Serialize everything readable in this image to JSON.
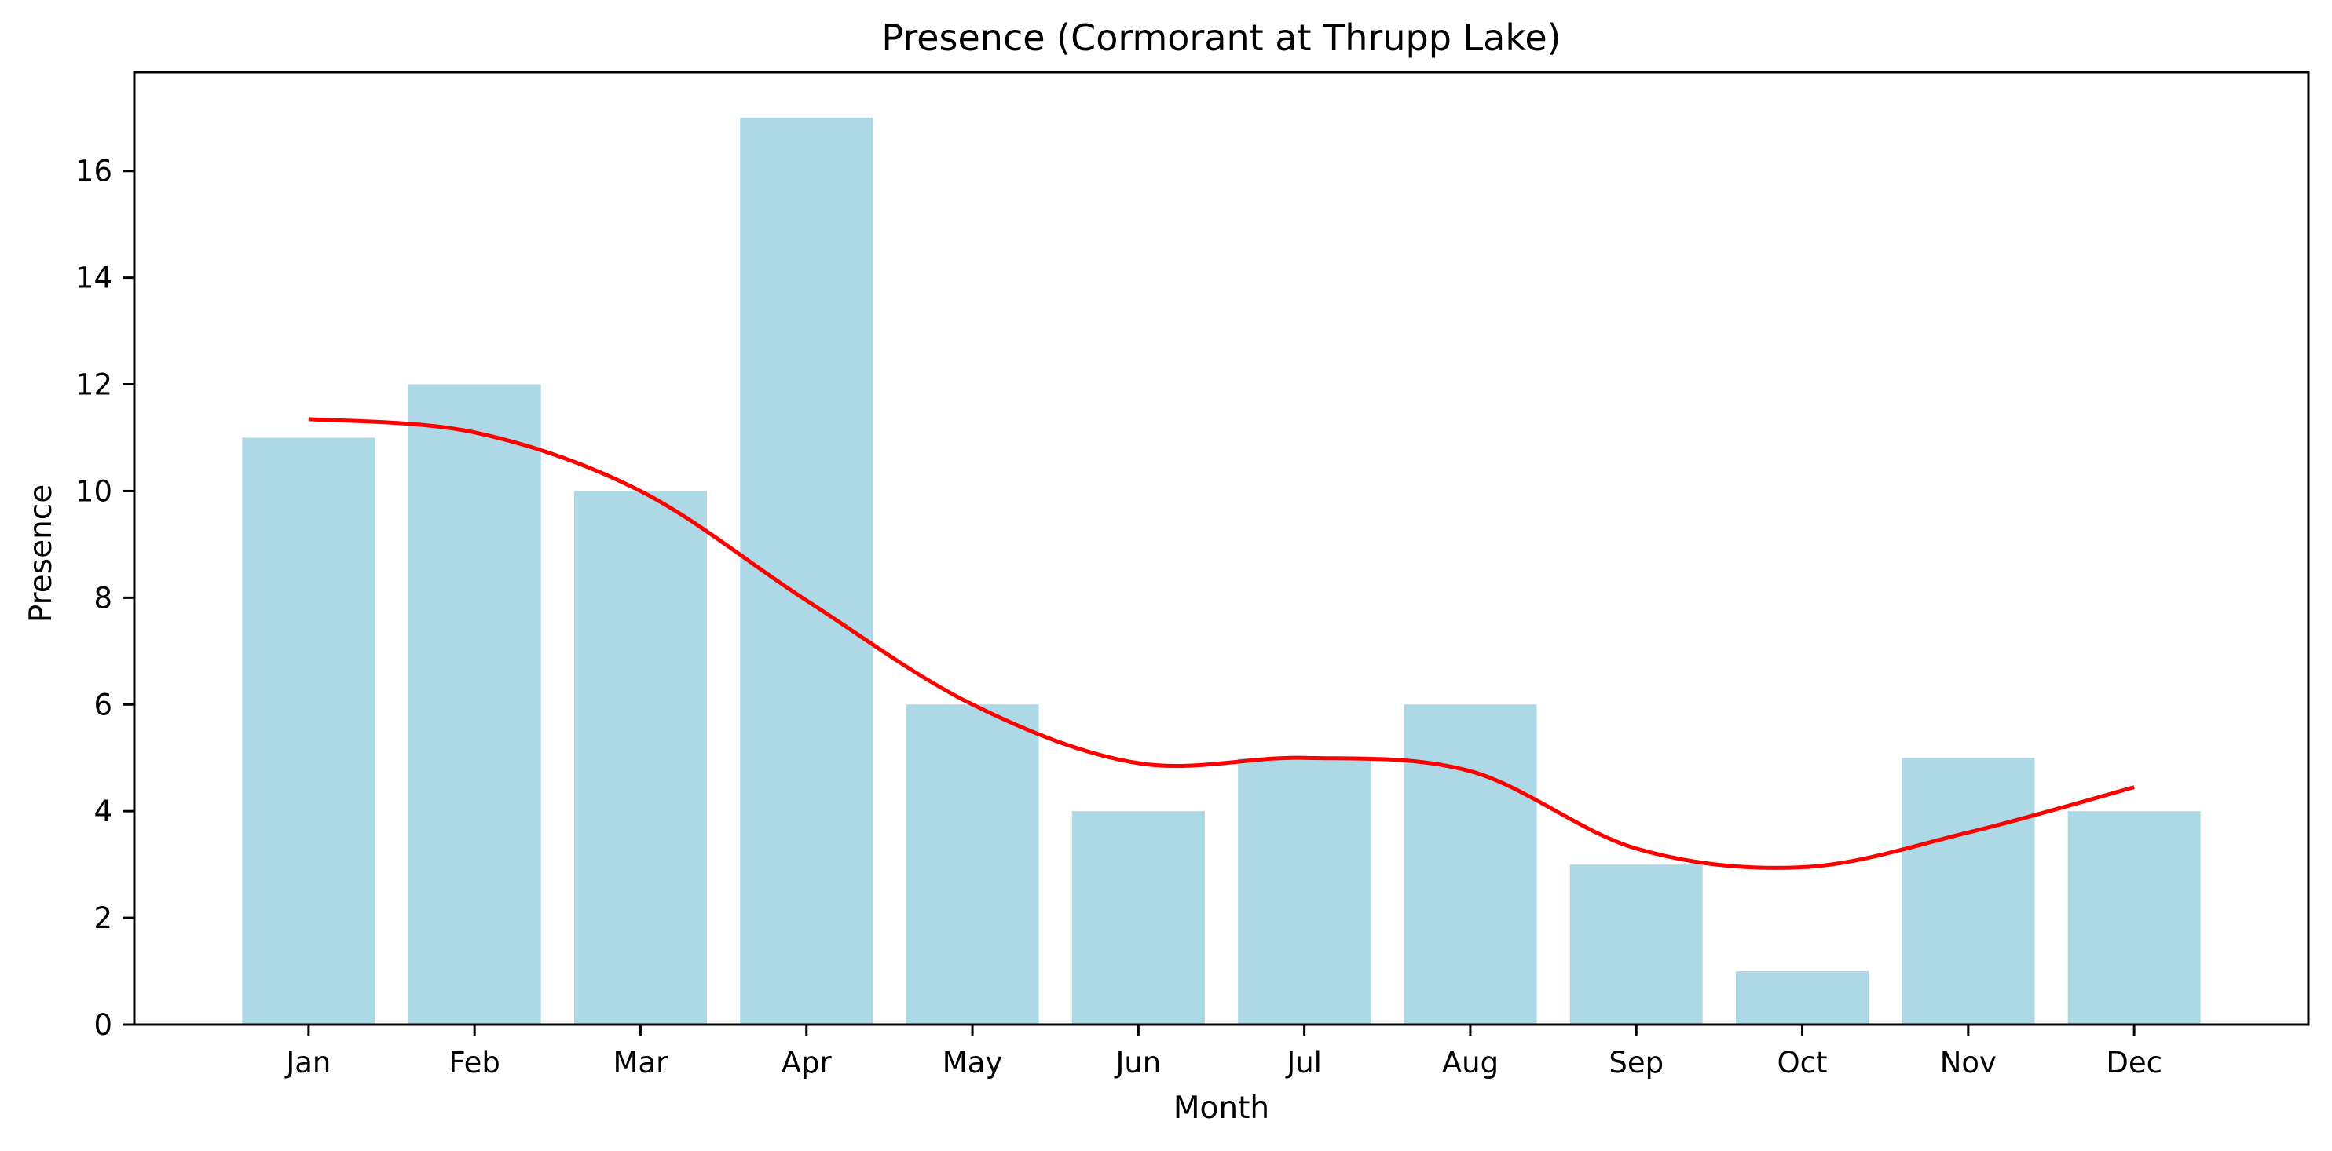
{
  "chart_data": {
    "type": "bar",
    "title": "Presence (Cormorant at Thrupp Lake)",
    "xlabel": "Month",
    "ylabel": "Presence",
    "categories": [
      "Jan",
      "Feb",
      "Mar",
      "Apr",
      "May",
      "Jun",
      "Jul",
      "Aug",
      "Sep",
      "Oct",
      "Nov",
      "Dec"
    ],
    "values": [
      11,
      12,
      10,
      17,
      6,
      4,
      5,
      6,
      3,
      1,
      5,
      4
    ],
    "trend": {
      "type": "line",
      "smooth": true,
      "values": [
        11.35,
        11.1,
        10.0,
        7.95,
        6.0,
        4.9,
        5.0,
        4.75,
        3.3,
        2.95,
        3.6,
        4.45
      ],
      "color": "#ff0000"
    },
    "ylim": [
      0,
      17.85
    ],
    "yticks": [
      0,
      2,
      4,
      6,
      8,
      10,
      12,
      14,
      16
    ],
    "bar_color": "#add8e6",
    "grid": false,
    "legend": "none"
  }
}
